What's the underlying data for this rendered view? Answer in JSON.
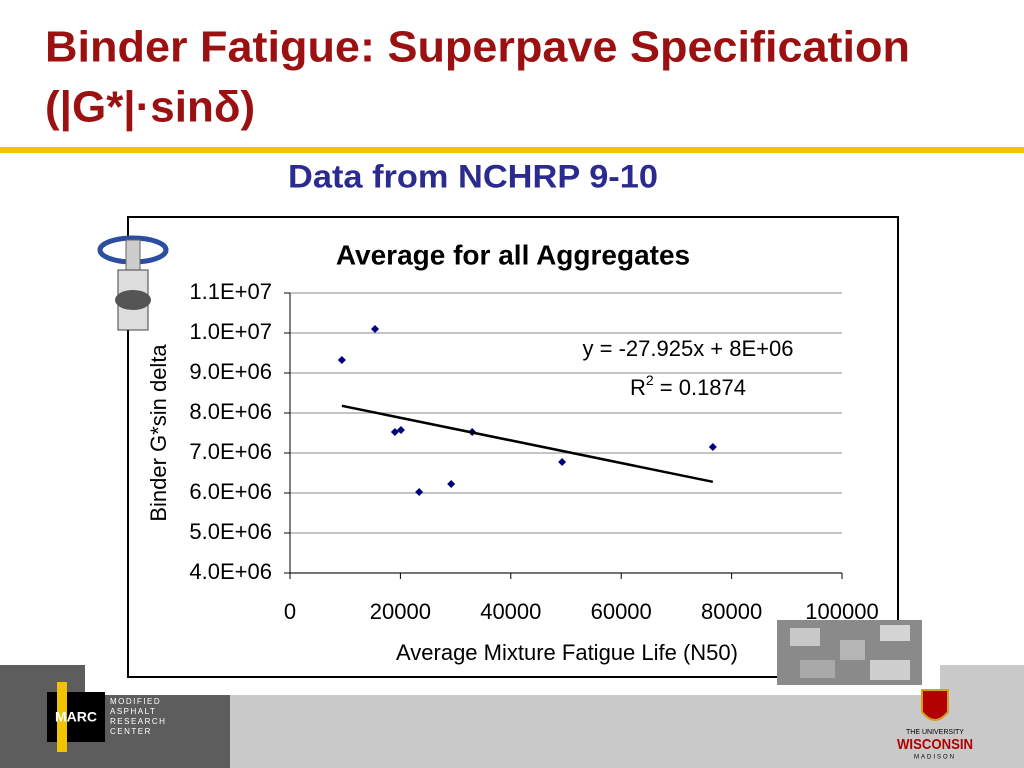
{
  "header": {
    "title_line1": "Binder Fatigue: Superpave Specification",
    "title_line2": "(|G*|·sinδ)",
    "subtitle": "Data from NCHRP 9-10"
  },
  "chart_data": {
    "type": "scatter",
    "title": "Average for all Aggregates",
    "y_label": "Binder G*sin delta",
    "x_label": "Average Mixture Fatigue Life (N50)",
    "color": "#000080",
    "x": [
      9400,
      15400,
      19000,
      20100,
      23400,
      29200,
      33000,
      49300,
      76600
    ],
    "values": [
      9325000,
      10100000,
      7525000,
      7575000,
      6025000,
      6225000,
      7525000,
      6775000,
      7150000
    ],
    "xlim": [
      0,
      100000
    ],
    "ylim": [
      4000000,
      11000000
    ],
    "xticks": [
      0,
      20000,
      40000,
      60000,
      80000,
      100000
    ],
    "yticks": [
      {
        "value": 4000000,
        "label": "4.0E+06"
      },
      {
        "value": 5000000,
        "label": "5.0E+06"
      },
      {
        "value": 6000000,
        "label": "6.0E+06"
      },
      {
        "value": 7000000,
        "label": "7.0E+06"
      },
      {
        "value": 8000000,
        "label": "8.0E+06"
      },
      {
        "value": 9000000,
        "label": "9.0E+06"
      },
      {
        "value": 10000000,
        "label": "1.0E+07"
      },
      {
        "value": 11000000,
        "label": "1.1E+07"
      }
    ],
    "grid": true,
    "trendline": {
      "x": [
        9400,
        76600
      ],
      "y": [
        8180000,
        6280000
      ],
      "color": "#000000"
    },
    "equation": "y = -27.925x + 8E+06",
    "r2": {
      "prefix": "R",
      "sup": "2",
      "suffix": " = 0.1874"
    }
  },
  "footer": {
    "logo": "MARC",
    "center_lines": [
      "MODIFIED",
      "ASPHALT",
      "RESEARCH",
      "CENTER"
    ],
    "university_top": "THE UNIVERSITY",
    "university_name": "WISCONSIN",
    "university_bottom": "MADISON"
  }
}
